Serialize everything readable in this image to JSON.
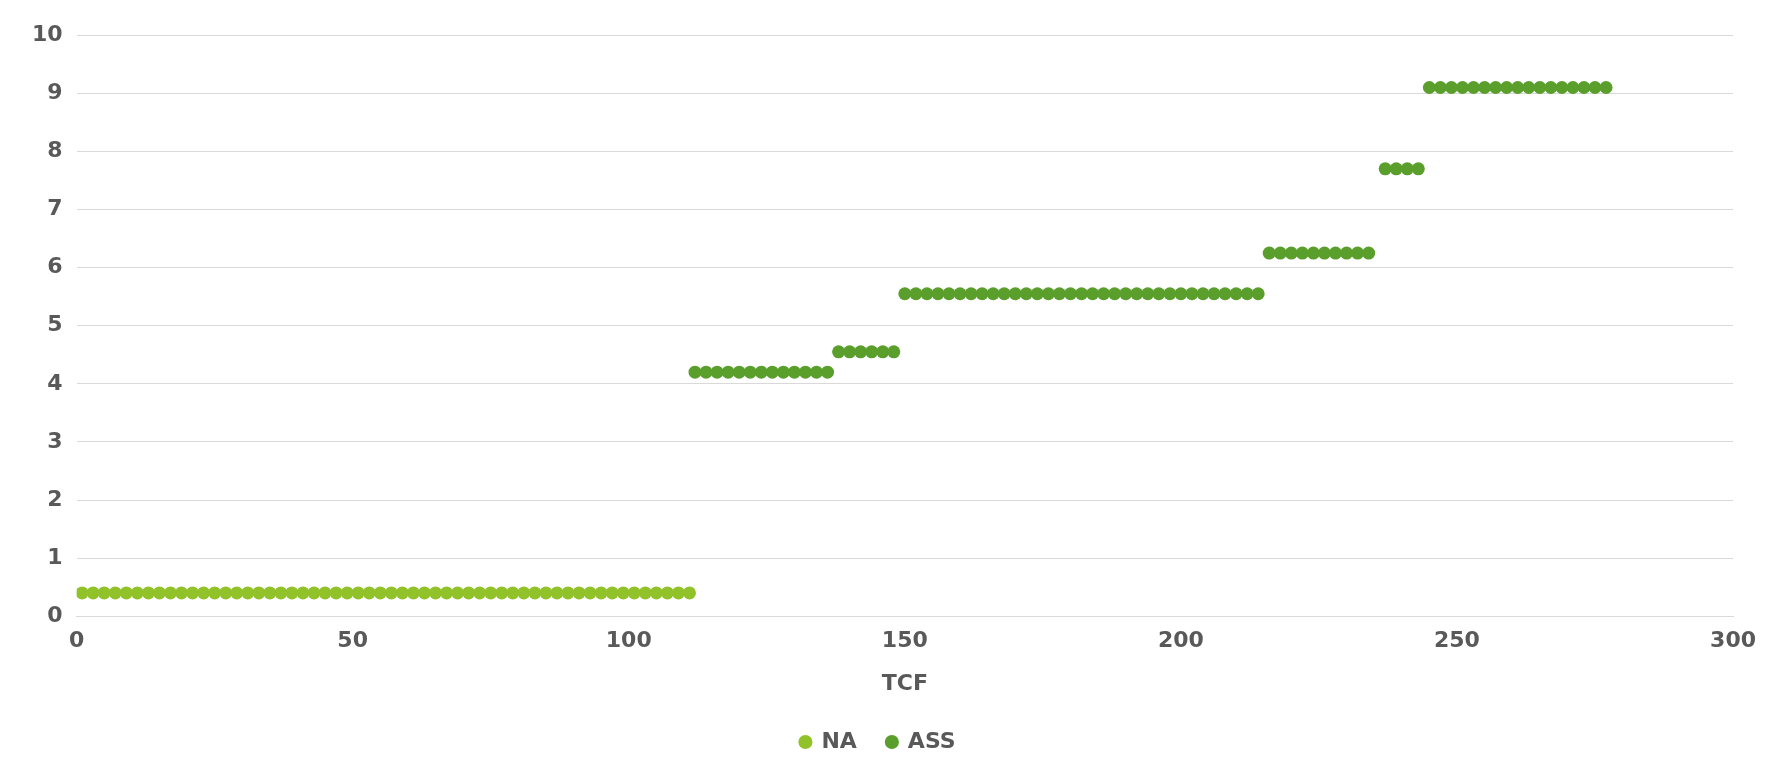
{
  "chart_data": {
    "type": "scatter",
    "xlabel": "TCF",
    "xlim": [
      0,
      300
    ],
    "xticks": [
      0,
      50,
      100,
      150,
      200,
      250,
      300
    ],
    "ylim": [
      0,
      10
    ],
    "yticks": [
      0,
      1,
      2,
      3,
      4,
      5,
      6,
      7,
      8,
      9,
      10
    ],
    "grid": "y",
    "legend": "bottom",
    "marker": "circle",
    "series": [
      {
        "name": "NA",
        "color": "#92c22a",
        "x": [
          1,
          3,
          5,
          7,
          9,
          11,
          13,
          15,
          17,
          19,
          21,
          23,
          25,
          27,
          29,
          31,
          33,
          35,
          37,
          39,
          41,
          43,
          45,
          47,
          49,
          51,
          53,
          55,
          57,
          59,
          61,
          63,
          65,
          67,
          69,
          71,
          73,
          75,
          77,
          79,
          81,
          83,
          85,
          87,
          89,
          91,
          93,
          95,
          97,
          99,
          101,
          103,
          105,
          107,
          109,
          111
        ],
        "values": [
          0.4,
          0.4,
          0.4,
          0.4,
          0.4,
          0.4,
          0.4,
          0.4,
          0.4,
          0.4,
          0.4,
          0.4,
          0.4,
          0.4,
          0.4,
          0.4,
          0.4,
          0.4,
          0.4,
          0.4,
          0.4,
          0.4,
          0.4,
          0.4,
          0.4,
          0.4,
          0.4,
          0.4,
          0.4,
          0.4,
          0.4,
          0.4,
          0.4,
          0.4,
          0.4,
          0.4,
          0.4,
          0.4,
          0.4,
          0.4,
          0.4,
          0.4,
          0.4,
          0.4,
          0.4,
          0.4,
          0.4,
          0.4,
          0.4,
          0.4,
          0.4,
          0.4,
          0.4,
          0.4,
          0.4,
          0.4
        ]
      },
      {
        "name": "ASS",
        "color": "#5a9f2b",
        "x": [
          112,
          114,
          116,
          118,
          120,
          122,
          124,
          126,
          128,
          130,
          132,
          134,
          136,
          138,
          140,
          142,
          144,
          146,
          148,
          150,
          152,
          154,
          156,
          158,
          160,
          162,
          164,
          166,
          168,
          170,
          172,
          174,
          176,
          178,
          180,
          182,
          184,
          186,
          188,
          190,
          192,
          194,
          196,
          198,
          200,
          202,
          204,
          206,
          208,
          210,
          212,
          214,
          216,
          218,
          220,
          222,
          224,
          226,
          228,
          230,
          232,
          234,
          237,
          239,
          241,
          243,
          245,
          247,
          249,
          251,
          253,
          255,
          257,
          259,
          261,
          263,
          265,
          267,
          269,
          271,
          273,
          275,
          277
        ],
        "values": [
          4.2,
          4.2,
          4.2,
          4.2,
          4.2,
          4.2,
          4.2,
          4.2,
          4.2,
          4.2,
          4.2,
          4.2,
          4.2,
          4.55,
          4.55,
          4.55,
          4.55,
          4.55,
          4.55,
          5.55,
          5.55,
          5.55,
          5.55,
          5.55,
          5.55,
          5.55,
          5.55,
          5.55,
          5.55,
          5.55,
          5.55,
          5.55,
          5.55,
          5.55,
          5.55,
          5.55,
          5.55,
          5.55,
          5.55,
          5.55,
          5.55,
          5.55,
          5.55,
          5.55,
          5.55,
          5.55,
          5.55,
          5.55,
          5.55,
          5.55,
          5.55,
          5.55,
          6.25,
          6.25,
          6.25,
          6.25,
          6.25,
          6.25,
          6.25,
          6.25,
          6.25,
          6.25,
          7.7,
          7.7,
          7.7,
          7.7,
          9.1,
          9.1,
          9.1,
          9.1,
          9.1,
          9.1,
          9.1,
          9.1,
          9.1,
          9.1,
          9.1,
          9.1,
          9.1,
          9.1,
          9.1,
          9.1,
          9.1
        ]
      }
    ]
  }
}
